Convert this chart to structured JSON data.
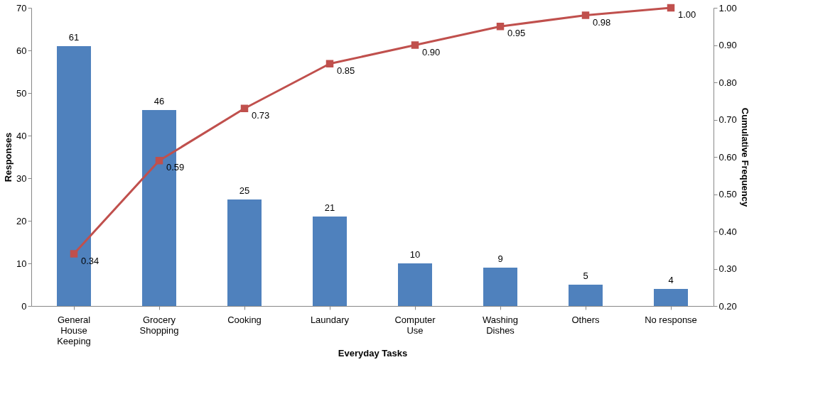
{
  "chart_data": {
    "type": "bar",
    "xlabel": "Everyday Tasks",
    "ylabel": "Responses",
    "y2label": "Cumulative Frequency",
    "categories": [
      "General\nHouse\nKeeping",
      "Grocery\nShopping",
      "Cooking",
      "Laundary",
      "Computer\nUse",
      "Washing\nDishes",
      "Others",
      "No response"
    ],
    "series": [
      {
        "color": "#4f81bd",
        "values": [
          61,
          46,
          25,
          21,
          10,
          9,
          5,
          4
        ]
      },
      {
        "type": "line",
        "axis": "y2",
        "color": "#c0504d",
        "marker": "square",
        "values": [
          0.34,
          0.59,
          0.73,
          0.85,
          0.9,
          0.95,
          0.98,
          1.0
        ],
        "value_labels": [
          "0.34",
          "0.59",
          "0.73",
          "0.85",
          "0.90",
          "0.95",
          "0.98",
          "1.00"
        ]
      }
    ],
    "data_labels": true,
    "ylim": [
      0,
      70
    ],
    "yticks": [
      0,
      10,
      20,
      30,
      40,
      50,
      60,
      70
    ],
    "y2lim": [
      0.2,
      1.0
    ],
    "y2ticks": [
      {
        "value": 0.2,
        "label": "0.20"
      },
      {
        "value": 0.3,
        "label": "0.30"
      },
      {
        "value": 0.4,
        "label": "0.40"
      },
      {
        "value": 0.5,
        "label": "0.50"
      },
      {
        "value": 0.6,
        "label": "0.60"
      },
      {
        "value": 0.7,
        "label": "0.70"
      },
      {
        "value": 0.8,
        "label": "0.80"
      },
      {
        "value": 0.9,
        "label": "0.90"
      },
      {
        "value": 1.0,
        "label": "1.00"
      }
    ],
    "grid": false
  }
}
